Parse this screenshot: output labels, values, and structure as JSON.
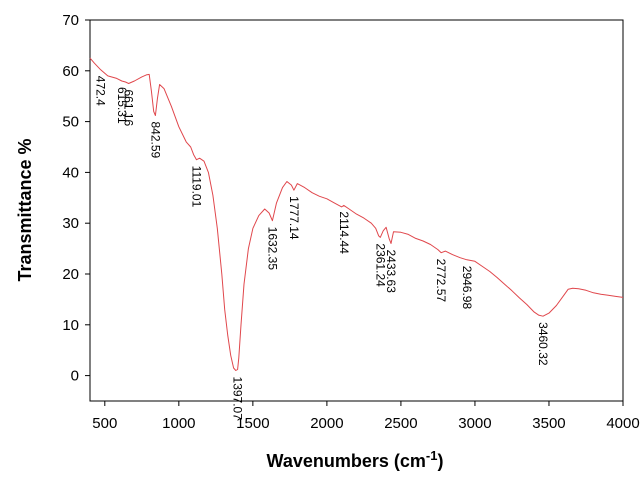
{
  "chart_data": {
    "type": "line",
    "title": "",
    "xlabel": "Wavenumbers (cm",
    "xlabel_sup": "-1",
    "xlabel_close": ")",
    "ylabel": "Transmittance %",
    "xlim": [
      400,
      4000
    ],
    "ylim": [
      -5,
      70
    ],
    "xticks": [
      500,
      1000,
      1500,
      2000,
      2500,
      3000,
      3500,
      4000
    ],
    "yticks": [
      0,
      10,
      20,
      30,
      40,
      50,
      60,
      70
    ],
    "grid": false,
    "line_color": "#e0474c",
    "series": [
      {
        "x": [
          400,
          430,
          472,
          520,
          580,
          615,
          640,
          661,
          700,
          750,
          780,
          800,
          815,
          830,
          842,
          855,
          870,
          900,
          950,
          1000,
          1050,
          1080,
          1100,
          1119,
          1140,
          1170,
          1200,
          1230,
          1260,
          1290,
          1310,
          1330,
          1350,
          1370,
          1385,
          1397,
          1405,
          1420,
          1440,
          1470,
          1500,
          1540,
          1580,
          1610,
          1632,
          1660,
          1700,
          1730,
          1760,
          1777,
          1800,
          1850,
          1900,
          1950,
          2000,
          2050,
          2100,
          2114,
          2150,
          2200,
          2250,
          2300,
          2330,
          2350,
          2361,
          2380,
          2400,
          2420,
          2433,
          2450,
          2500,
          2550,
          2600,
          2650,
          2700,
          2750,
          2772,
          2800,
          2850,
          2900,
          2946,
          3000,
          3050,
          3100,
          3150,
          3200,
          3250,
          3300,
          3350,
          3400,
          3430,
          3460,
          3500,
          3550,
          3600,
          3630,
          3660,
          3700,
          3750,
          3800,
          3850,
          3900,
          3950,
          4000
        ],
        "y": [
          62.5,
          61.5,
          60.2,
          59.0,
          58.5,
          58.0,
          57.8,
          57.5,
          58.0,
          58.8,
          59.2,
          59.3,
          56.0,
          52.0,
          51.2,
          54.5,
          57.3,
          56.5,
          53.0,
          49.0,
          46.0,
          45.0,
          43.5,
          42.5,
          42.8,
          42.2,
          40.0,
          35.5,
          29.0,
          20.0,
          13.0,
          8.0,
          4.0,
          1.5,
          1.0,
          1.2,
          3.5,
          10.0,
          18.0,
          25.0,
          29.0,
          31.5,
          32.8,
          32.0,
          30.5,
          34.0,
          37.0,
          38.2,
          37.5,
          36.5,
          37.8,
          37.0,
          36.0,
          35.3,
          34.8,
          34.0,
          33.2,
          33.5,
          32.8,
          31.8,
          31.0,
          30.0,
          29.0,
          27.5,
          27.2,
          28.5,
          29.2,
          27.0,
          26.0,
          28.3,
          28.2,
          27.8,
          27.0,
          26.5,
          25.8,
          24.8,
          24.2,
          24.5,
          23.8,
          23.2,
          22.8,
          22.5,
          21.5,
          20.5,
          19.3,
          18.0,
          16.7,
          15.3,
          14.0,
          12.5,
          11.9,
          11.7,
          12.3,
          13.8,
          15.8,
          17.0,
          17.2,
          17.1,
          16.8,
          16.3,
          16.0,
          15.8,
          15.6,
          15.4
        ]
      }
    ],
    "annotations": [
      {
        "text": "472.4",
        "x": 472,
        "y": 60.2
      },
      {
        "text": "615.31",
        "x": 615,
        "y": 58.0
      },
      {
        "text": "661.16",
        "x": 661,
        "y": 57.5
      },
      {
        "text": "842.59",
        "x": 842,
        "y": 51.2
      },
      {
        "text": "1119.01",
        "x": 1119,
        "y": 42.5
      },
      {
        "text": "1397.07",
        "x": 1397,
        "y": 1.0
      },
      {
        "text": "1632.35",
        "x": 1632,
        "y": 30.5
      },
      {
        "text": "1777.14",
        "x": 1777,
        "y": 36.5
      },
      {
        "text": "2114.44",
        "x": 2114,
        "y": 33.5
      },
      {
        "text": "2361.24",
        "x": 2361,
        "y": 27.2
      },
      {
        "text": "2433.63",
        "x": 2433,
        "y": 26.0
      },
      {
        "text": "2772.57",
        "x": 2772,
        "y": 24.2
      },
      {
        "text": "2946.98",
        "x": 2946,
        "y": 22.8
      },
      {
        "text": "3460.32",
        "x": 3460,
        "y": 11.7
      }
    ]
  }
}
